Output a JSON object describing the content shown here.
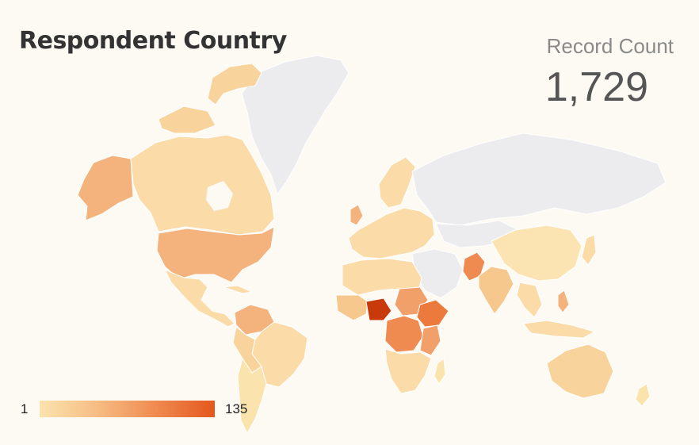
{
  "header": {
    "title": "Respondent Country",
    "kpi_label": "Record Count",
    "kpi_value": "1,729"
  },
  "legend": {
    "min_label": "1",
    "max_label": "135",
    "colors": [
      "#fbe3ae",
      "#f6bc83",
      "#ef8a50",
      "#e4571d"
    ]
  },
  "map": {
    "type": "choropleth-world",
    "no_data_color": "#ececee",
    "border_color": "#ffffff",
    "highlighted_regions": [
      {
        "name": "Nigeria",
        "level": "highest"
      },
      {
        "name": "Pakistan",
        "level": "high"
      },
      {
        "name": "Ethiopia",
        "level": "high"
      },
      {
        "name": "DR Congo",
        "level": "high"
      },
      {
        "name": "Sudan",
        "level": "medium"
      },
      {
        "name": "United States",
        "level": "medium"
      },
      {
        "name": "Alaska",
        "level": "medium"
      },
      {
        "name": "Canada",
        "level": "low"
      },
      {
        "name": "Brazil",
        "level": "low"
      },
      {
        "name": "Australia",
        "level": "low"
      },
      {
        "name": "India",
        "level": "low"
      },
      {
        "name": "China",
        "level": "low"
      }
    ]
  }
}
